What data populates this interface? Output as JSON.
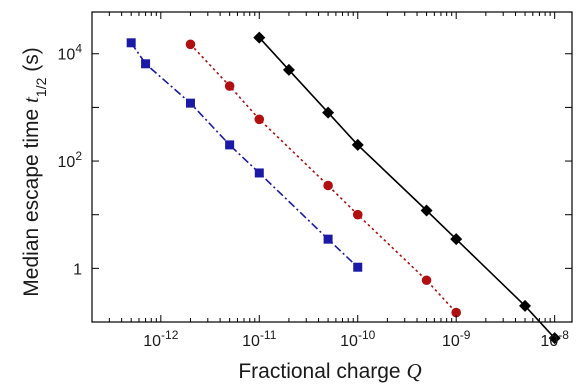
{
  "chart_data": {
    "type": "line",
    "xscale": "log",
    "yscale": "log",
    "xlim": [
      2e-13,
      1.5e-08
    ],
    "ylim": [
      0.1,
      60000
    ],
    "xticks": [
      {
        "value": 1e-12,
        "base": "10",
        "exp": "-12"
      },
      {
        "value": 1e-11,
        "base": "10",
        "exp": "-11"
      },
      {
        "value": 1e-10,
        "base": "10",
        "exp": "-10"
      },
      {
        "value": 1e-09,
        "base": "10",
        "exp": "-9"
      },
      {
        "value": 1e-08,
        "base": "10",
        "exp": "-8"
      }
    ],
    "yticks": [
      {
        "value": 1,
        "label": "1",
        "base": "",
        "exp": ""
      },
      {
        "value": 100,
        "label": "",
        "base": "10",
        "exp": "2"
      },
      {
        "value": 10000,
        "label": "",
        "base": "10",
        "exp": "4"
      }
    ],
    "xlabel": {
      "text": "Fractional charge ",
      "symbol": "Q"
    },
    "ylabel": {
      "text": "Median escape time ",
      "symbol": "t",
      "subscript": "1/2",
      "unit": " (s)"
    },
    "grid": false,
    "series": [
      {
        "color": "#1a1aa6",
        "marker": "square",
        "linestyle": "dashdot",
        "x": [
          5e-13,
          7e-13,
          2e-12,
          5e-12,
          1e-11,
          5e-11,
          1e-10
        ],
        "y": [
          16000,
          6500,
          1200,
          200,
          60,
          3.5,
          1.05
        ]
      },
      {
        "color": "#b01010",
        "marker": "circle",
        "linestyle": "dotted",
        "x": [
          2e-12,
          5e-12,
          1e-11,
          5e-11,
          1e-10,
          5e-10,
          1e-09
        ],
        "y": [
          15000,
          2500,
          600,
          35,
          10,
          0.6,
          0.15
        ]
      },
      {
        "color": "#000000",
        "marker": "diamond",
        "linestyle": "solid",
        "x": [
          1e-11,
          2e-11,
          5e-11,
          1e-10,
          5e-10,
          1e-09,
          5e-09,
          1e-08
        ],
        "y": [
          20000,
          5000,
          800,
          200,
          12,
          3.5,
          0.2,
          0.05
        ]
      }
    ]
  }
}
